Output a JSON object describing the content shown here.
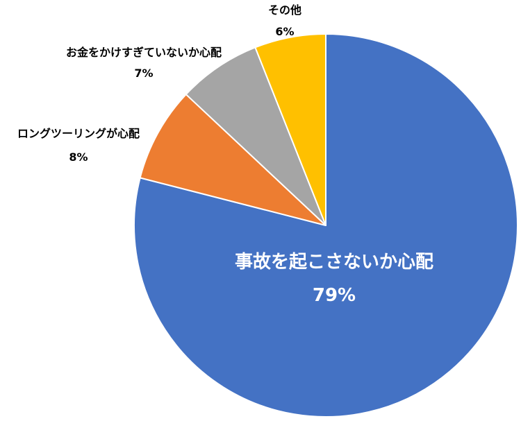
{
  "chart_data": {
    "type": "pie",
    "title": "",
    "start_angle_deg": 0,
    "direction": "clockwise",
    "slices": [
      {
        "label": "事故を起こさないか心配",
        "value": 79,
        "value_label": "79%",
        "color": "#4472C4",
        "label_color": "#ffffff"
      },
      {
        "label": "ロングツーリングが心配",
        "value": 8,
        "value_label": "8%",
        "color": "#ED7D31",
        "label_color": "#000000"
      },
      {
        "label": "お金をかけすぎていないか心配",
        "value": 7,
        "value_label": "7%",
        "color": "#A5A5A5",
        "label_color": "#000000"
      },
      {
        "label": "その他",
        "value": 6,
        "value_label": "6%",
        "color": "#FFC000",
        "label_color": "#000000"
      }
    ],
    "legend": "none",
    "data_labels": "category-and-percent"
  }
}
